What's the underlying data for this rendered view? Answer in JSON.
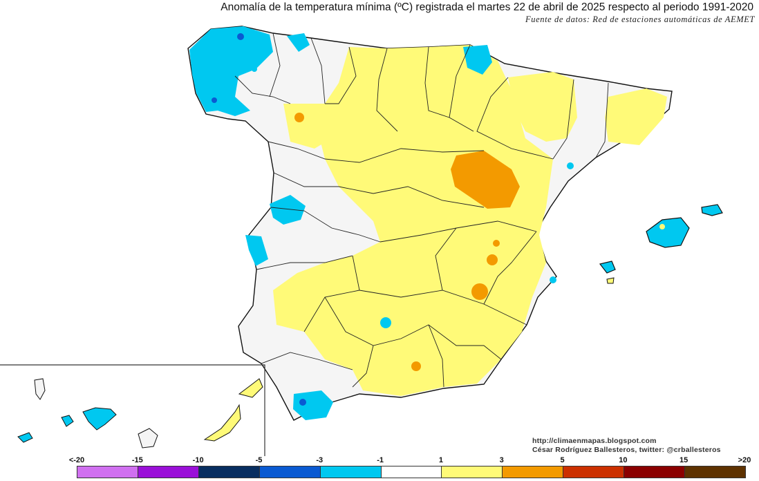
{
  "title": "Anomalía de la temperatura mínima (ºC) registrada el martes 22 de abril de 2025 respecto al periodo 1991-2020",
  "subtitle": "Fuente de datos: Red de estaciones automáticas de AEMET",
  "credits": {
    "blog": "http://climaenmapas.blogspot.com",
    "author": "César Rodríguez Ballesteros, twitter: @crballesteros"
  },
  "legend": {
    "labels": [
      "<-20",
      "-15",
      "-10",
      "-5",
      "-3",
      "-1",
      "1",
      "3",
      "5",
      "10",
      "15",
      ">20"
    ],
    "colors": [
      "#d070f0",
      "#9a10d8",
      "#082e60",
      "#0a5ad2",
      "#00c8f0",
      "#ffffff",
      "#fffa78",
      "#f39a00",
      "#cc3000",
      "#8b0000",
      "#5e3200"
    ]
  },
  "colors": {
    "neutral": "#f5f5f5",
    "warm1": "#fffa78",
    "warm2": "#f39a00",
    "cool1": "#00c8f0",
    "cool2": "#0a5ad2",
    "border": "#111111"
  }
}
